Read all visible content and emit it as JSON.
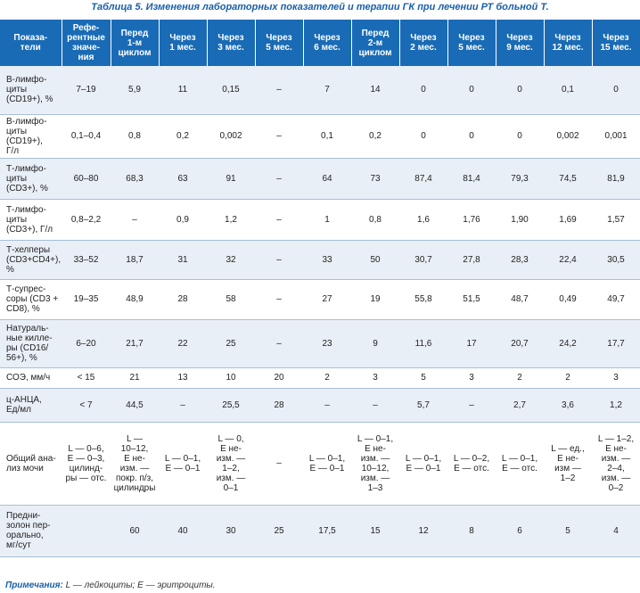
{
  "caption": "Таблица 5. Изменения лабораторных показателей и терапии ГК при лечении РТ больной Т.",
  "headers": [
    "Показа-\nтели",
    "Рефе-\nрентные\nзначе-\nния",
    "Перед\n1-м\nциклом",
    "Через\n1 мес.",
    "Через\n3 мес.",
    "Через\n5 мес.",
    "Через\n6 мес.",
    "Перед\n2-м\nциклом",
    "Через\n2 мес.",
    "Через\n5 мес.",
    "Через\n9 мес.",
    "Через\n12 мес.",
    "Через\n15 мес."
  ],
  "rows": [
    [
      "В-лимфо-\nциты\n(CD19+), %",
      "7–19",
      "5,9",
      "11",
      "0,15",
      "–",
      "7",
      "14",
      "0",
      "0",
      "0",
      "0,1",
      "0"
    ],
    [
      "В-лимфо-\nциты\n(CD19+),\nГ/л",
      "0,1–0,4",
      "0,8",
      "0,2",
      "0,002",
      "–",
      "0,1",
      "0,2",
      "0",
      "0",
      "0",
      "0,002",
      "0,001"
    ],
    [
      "Т-лимфо-\nциты\n(CD3+), %",
      "60–80",
      "68,3",
      "63",
      "91",
      "–",
      "64",
      "73",
      "87,4",
      "81,4",
      "79,3",
      "74,5",
      "81,9"
    ],
    [
      "Т-лимфо-\nциты\n(CD3+), Г/л",
      "0,8–2,2",
      "–",
      "0,9",
      "1,2",
      "–",
      "1",
      "0,8",
      "1,6",
      "1,76",
      "1,90",
      "1,69",
      "1,57"
    ],
    [
      "Т-хелперы\n(CD3+CD4+),\n%",
      "33–52",
      "18,7",
      "31",
      "32",
      "–",
      "33",
      "50",
      "30,7",
      "27,8",
      "28,3",
      "22,4",
      "30,5"
    ],
    [
      "Т-супрес-\nсоры (CD3 +\nCD8), %",
      "19–35",
      "48,9",
      "28",
      "58",
      "–",
      "27",
      "19",
      "55,8",
      "51,5",
      "48,7",
      "0,49",
      "49,7"
    ],
    [
      "Натураль-\nные килле-\nры (CD16/\n56+), %",
      "6–20",
      "21,7",
      "22",
      "25",
      "–",
      "23",
      "9",
      "11,6",
      "17",
      "20,7",
      "24,2",
      "17,7"
    ],
    [
      "СОЭ, мм/ч",
      "< 15",
      "21",
      "13",
      "10",
      "20",
      "2",
      "3",
      "5",
      "3",
      "2",
      "2",
      "3"
    ],
    [
      "ц-АНЦА,\nЕд/мл",
      "< 7",
      "44,5",
      "–",
      "25,5",
      "28",
      "–",
      "–",
      "5,7",
      "–",
      "2,7",
      "3,6",
      "1,2"
    ],
    [
      "Общий ана-\nлиз мочи",
      "L — 0–6,\nE — 0–3,\nцилинд-\nры — отс.",
      "L —\n10–12,\nE не-\nизм. —\nпокр. п/з,\nцилиндры",
      "L — 0–1,\nE — 0–1",
      "L — 0,\nE не-\nизм. —\n1–2,\nизм. —\n0–1",
      "–",
      "L — 0–1,\nE — 0–1",
      "L — 0–1,\nE не-\nизм. —\n10–12,\nизм. —\n1–3",
      "L — 0–1,\nE — 0–1",
      "L — 0–2,\nE — отс.",
      "L — 0–1,\nE — отс.",
      "L — ед.,\nE не-\nизм —\n1–2",
      "L — 1–2,\nE не-\nизм. —\n2–4,\nизм. —\n0–2"
    ],
    [
      "Предни-\nзолон пер-\nорально,\nмг/сут",
      "",
      "60",
      "40",
      "30",
      "25",
      "17,5",
      "15",
      "12",
      "8",
      "6",
      "5",
      "4"
    ]
  ],
  "note_label": "Примечания:",
  "note_text": " L — лейкоциты; E — эритроциты."
}
